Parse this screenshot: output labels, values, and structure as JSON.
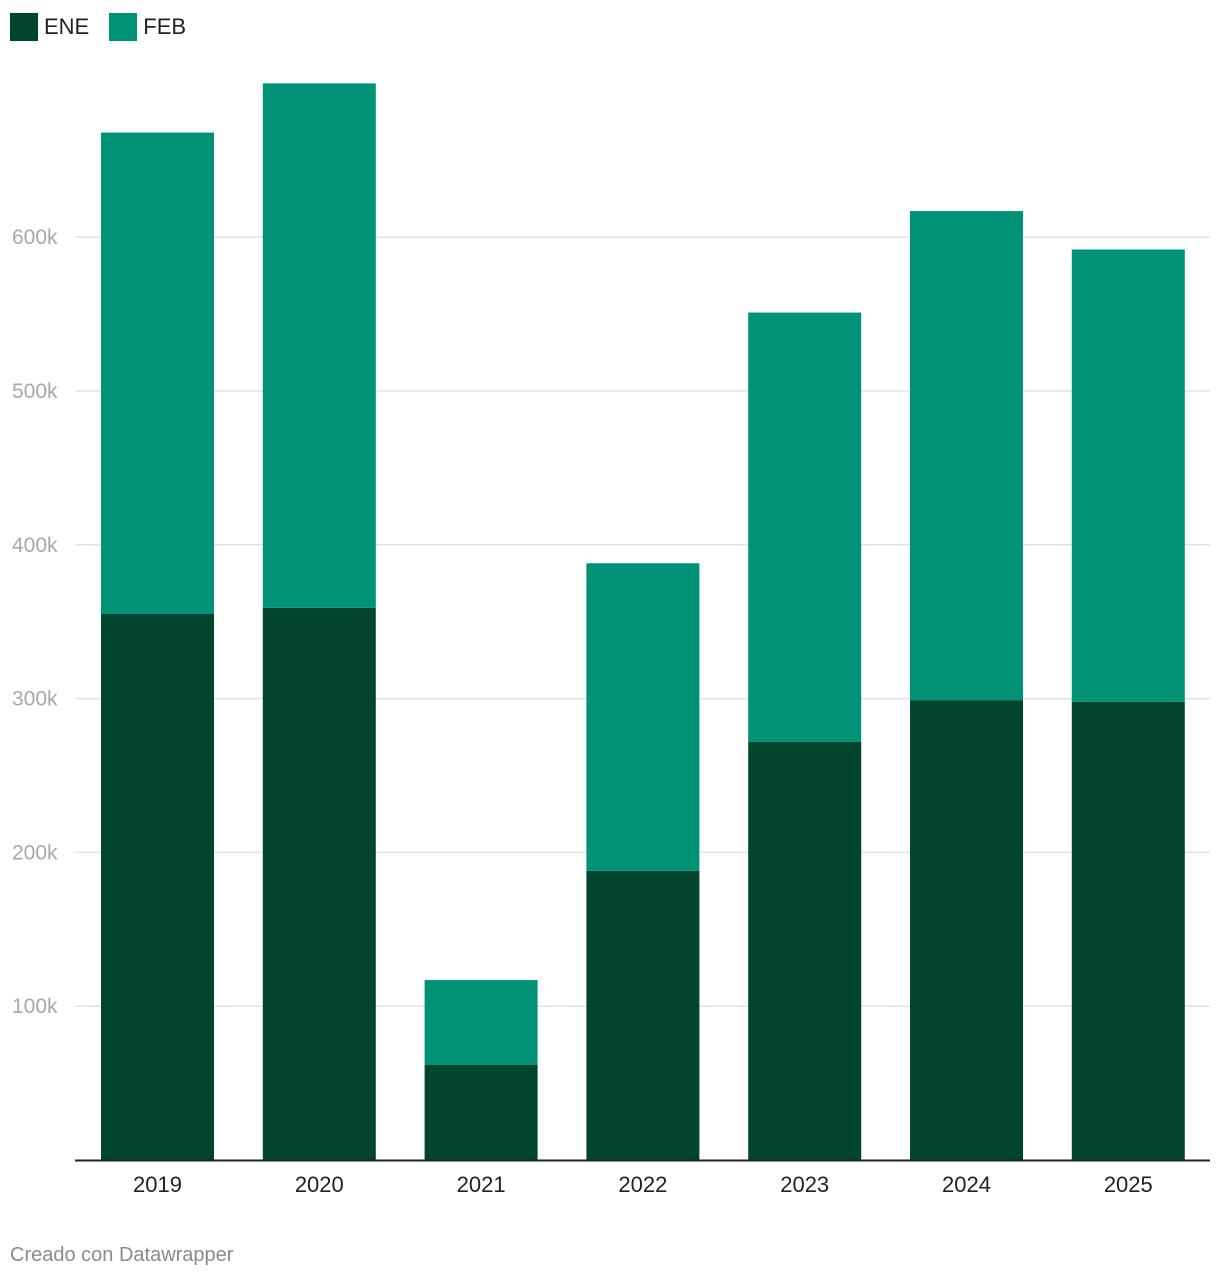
{
  "chart_data": {
    "type": "bar",
    "stacked": true,
    "categories": [
      "2019",
      "2020",
      "2021",
      "2022",
      "2023",
      "2024",
      "2025"
    ],
    "series": [
      {
        "name": "ENE",
        "color": "#02452f",
        "values": [
          355000,
          359000,
          62000,
          188000,
          272000,
          299000,
          298000
        ]
      },
      {
        "name": "FEB",
        "color": "#009277",
        "values": [
          313000,
          341000,
          55000,
          200000,
          279000,
          318000,
          294000
        ]
      }
    ],
    "y_ticks": [
      100000,
      200000,
      300000,
      400000,
      500000,
      600000
    ],
    "y_tick_labels": [
      "100k",
      "200k",
      "300k",
      "400k",
      "500k",
      "600k"
    ],
    "ylim": [
      0,
      720000
    ],
    "grid": true,
    "legend_position": "top-left"
  },
  "footer": {
    "credit": "Creado con Datawrapper"
  }
}
